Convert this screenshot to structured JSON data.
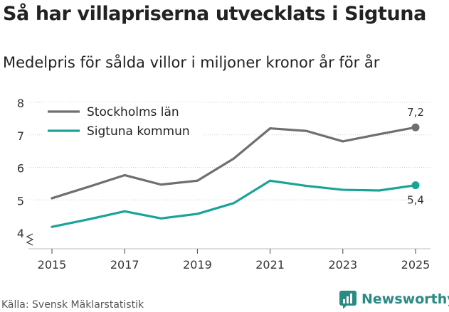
{
  "title": "Så har villapriserna utvecklats i Sigtuna",
  "subtitle": "Medelpris för sålda villor i miljoner kronor år för år",
  "source": "Källa: Svensk Mäklarstatistik",
  "brand": {
    "name": "Newsworthy",
    "icon": "newsworthy-logo-icon",
    "color": "#2a8a84"
  },
  "chart_data": {
    "type": "line",
    "title": "Så har villapriserna utvecklats i Sigtuna",
    "subtitle": "Medelpris för sålda villor i miljoner kronor år för år",
    "xlabel": "",
    "ylabel": "",
    "x": [
      2015,
      2016,
      2017,
      2018,
      2019,
      2020,
      2021,
      2022,
      2023,
      2024,
      2025
    ],
    "xticks": [
      "2015",
      "2017",
      "2019",
      "2021",
      "2023",
      "2025"
    ],
    "yticks": [
      "4",
      "5",
      "6",
      "7",
      "8"
    ],
    "ylim": [
      4,
      8
    ],
    "axis_break": true,
    "grid": true,
    "legend": "top-left",
    "series": [
      {
        "name": "Stockholms län",
        "color": "#6e6e73",
        "values": [
          5.05,
          5.4,
          5.76,
          5.47,
          5.59,
          6.27,
          7.2,
          7.12,
          6.8,
          7.02,
          7.23
        ],
        "end_label": "7,2"
      },
      {
        "name": "Sigtuna kommun",
        "color": "#1aa398",
        "values": [
          4.17,
          4.4,
          4.65,
          4.43,
          4.57,
          4.9,
          5.59,
          5.43,
          5.31,
          5.29,
          5.45
        ],
        "end_label": "5,4"
      }
    ]
  }
}
